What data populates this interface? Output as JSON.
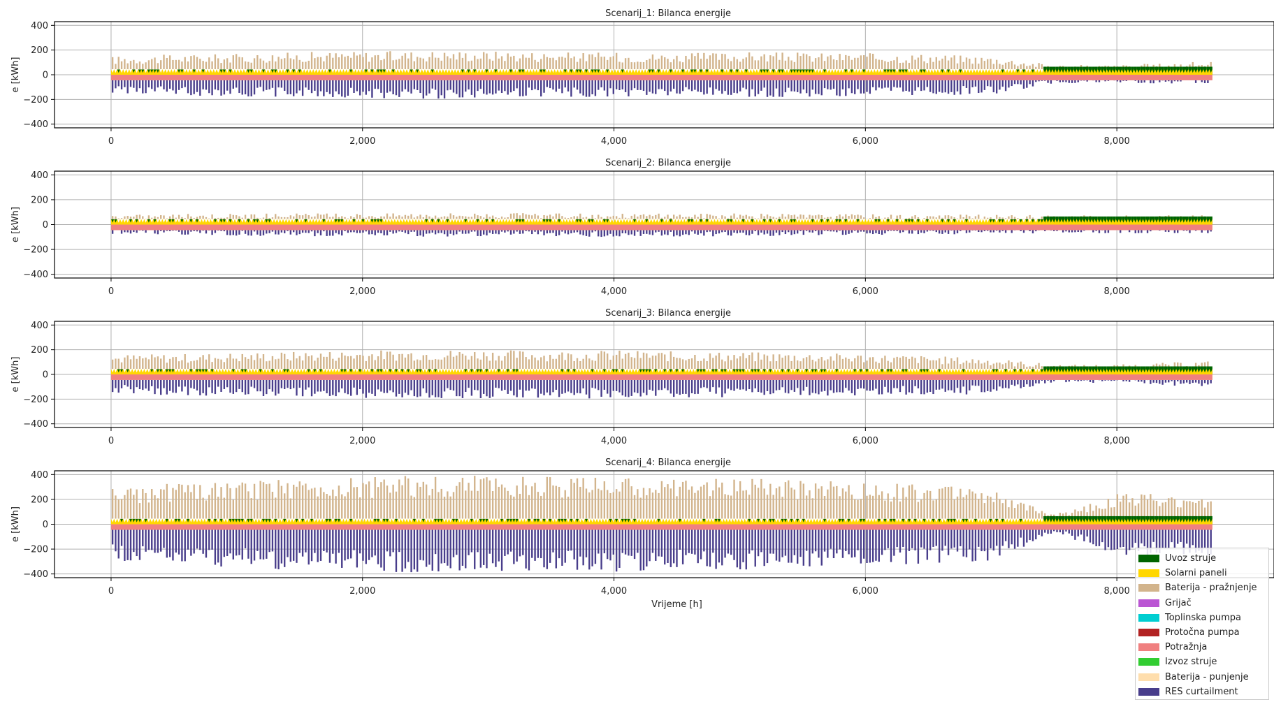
{
  "chart_data": [
    {
      "type": "area",
      "title": "Scenarij_1: Bilanca energije",
      "ylabel": "e [kWh]",
      "xlabel": "",
      "xlim": [
        -450,
        9250
      ],
      "ylim": [
        -430,
        430
      ],
      "xticks": [
        0,
        2000,
        4000,
        6000,
        8000
      ],
      "xtick_labels": [
        "0",
        "2,000",
        "4,000",
        "6,000",
        "8,000"
      ],
      "yticks": [
        400,
        200,
        0,
        -200,
        -400
      ],
      "ytick_labels": [
        "400",
        "200",
        "0",
        "−200",
        "−400"
      ],
      "grid": true,
      "envelope": {
        "hour": [
          0,
          500,
          1000,
          1500,
          2000,
          2500,
          3000,
          3500,
          4000,
          4500,
          5000,
          5500,
          6000,
          6500,
          7000,
          7500,
          8000,
          8760
        ],
        "battery_discharge_peak": [
          150,
          165,
          170,
          185,
          190,
          195,
          195,
          185,
          180,
          175,
          185,
          180,
          175,
          170,
          150,
          80,
          80,
          110
        ],
        "res_curtailment_trough": [
          -150,
          -170,
          -175,
          -185,
          -190,
          -195,
          -190,
          -180,
          -185,
          -180,
          -185,
          -180,
          -175,
          -170,
          -160,
          -70,
          -70,
          -70
        ]
      },
      "stack_levels": {
        "solar_panels": 45,
        "demand": -45
      }
    },
    {
      "type": "area",
      "title": "Scenarij_2: Bilanca energije",
      "ylabel": "e [kWh]",
      "xlabel": "",
      "xlim": [
        -450,
        9250
      ],
      "ylim": [
        -430,
        430
      ],
      "xticks": [
        0,
        2000,
        4000,
        6000,
        8000
      ],
      "xtick_labels": [
        "0",
        "2,000",
        "4,000",
        "6,000",
        "8,000"
      ],
      "yticks": [
        400,
        200,
        0,
        -200,
        -400
      ],
      "ytick_labels": [
        "400",
        "200",
        "0",
        "−200",
        "−400"
      ],
      "grid": true,
      "envelope": {
        "hour": [
          0,
          500,
          1000,
          1500,
          2000,
          2500,
          3000,
          3500,
          4000,
          4500,
          5000,
          5500,
          6000,
          6500,
          7000,
          7500,
          8000,
          8760
        ],
        "battery_discharge_peak": [
          80,
          85,
          90,
          90,
          90,
          95,
          95,
          90,
          90,
          90,
          90,
          85,
          85,
          80,
          80,
          75,
          75,
          75
        ],
        "res_curtailment_trough": [
          -75,
          -80,
          -90,
          -95,
          -95,
          -100,
          -95,
          -95,
          -100,
          -95,
          -95,
          -90,
          -85,
          -80,
          -75,
          -70,
          -70,
          -70
        ]
      },
      "stack_levels": {
        "solar_panels": 45,
        "demand": -45
      }
    },
    {
      "type": "area",
      "title": "Scenarij_3: Bilanca energije",
      "ylabel": "e [kWh]",
      "xlabel": "",
      "xlim": [
        -450,
        9250
      ],
      "ylim": [
        -430,
        430
      ],
      "xticks": [
        0,
        2000,
        4000,
        6000,
        8000
      ],
      "xtick_labels": [
        "0",
        "2,000",
        "4,000",
        "6,000",
        "8,000"
      ],
      "yticks": [
        400,
        200,
        0,
        -200,
        -400
      ],
      "ytick_labels": [
        "400",
        "200",
        "0",
        "−200",
        "−400"
      ],
      "grid": true,
      "envelope": {
        "hour": [
          0,
          500,
          1000,
          1500,
          2000,
          2500,
          3000,
          3500,
          4000,
          4500,
          5000,
          5500,
          6000,
          6500,
          7000,
          7500,
          8000,
          8760
        ],
        "battery_discharge_peak": [
          160,
          165,
          175,
          185,
          195,
          200,
          200,
          190,
          195,
          185,
          180,
          175,
          165,
          150,
          130,
          80,
          80,
          110
        ],
        "res_curtailment_trough": [
          -150,
          -175,
          -180,
          -185,
          -190,
          -200,
          -195,
          -190,
          -200,
          -185,
          -185,
          -180,
          -175,
          -165,
          -160,
          -70,
          -70,
          -110
        ]
      },
      "stack_levels": {
        "solar_panels": 45,
        "demand": -45
      }
    },
    {
      "type": "area",
      "title": "Scenarij_4: Bilanca energije",
      "ylabel": "e [kWh]",
      "xlabel": "Vrijeme [h]",
      "xlim": [
        -450,
        9250
      ],
      "ylim": [
        -430,
        430
      ],
      "xticks": [
        0,
        2000,
        4000,
        6000,
        8000
      ],
      "xtick_labels": [
        "0",
        "2,000",
        "4,000",
        "6,000",
        "8,000"
      ],
      "yticks": [
        400,
        200,
        0,
        -200,
        -400
      ],
      "ytick_labels": [
        "400",
        "200",
        "0",
        "−200",
        "−400"
      ],
      "grid": true,
      "legend_position": "lower-right",
      "envelope": {
        "hour": [
          0,
          500,
          1000,
          1500,
          2000,
          2500,
          3000,
          3500,
          4000,
          4500,
          5000,
          5500,
          6000,
          6500,
          7000,
          7500,
          8000,
          8760
        ],
        "battery_discharge_peak": [
          290,
          330,
          350,
          370,
          380,
          395,
          395,
          380,
          380,
          370,
          370,
          360,
          340,
          320,
          280,
          80,
          260,
          230
        ],
        "res_curtailment_trough": [
          -290,
          -320,
          -350,
          -370,
          -380,
          -395,
          -390,
          -380,
          -390,
          -370,
          -370,
          -360,
          -340,
          -320,
          -290,
          -70,
          -250,
          -250
        ]
      },
      "stack_levels": {
        "solar_panels": 45,
        "demand": -45
      }
    }
  ],
  "legend": [
    {
      "label": "Uvoz struje",
      "color": "#006400"
    },
    {
      "label": "Solarni paneli",
      "color": "#ffd700"
    },
    {
      "label": "Baterija - pražnjenje",
      "color": "#d2b48c"
    },
    {
      "label": "Grijač",
      "color": "#ba55d3"
    },
    {
      "label": "Toplinska pumpa",
      "color": "#00ced1"
    },
    {
      "label": "Protočna pumpa",
      "color": "#b22222"
    },
    {
      "label": "Potražnja",
      "color": "#f08080"
    },
    {
      "label": "Izvoz struje",
      "color": "#32cd32"
    },
    {
      "label": "Baterija - punjenje",
      "color": "#ffdead"
    },
    {
      "label": "RES curtailment",
      "color": "#483d8b"
    }
  ]
}
